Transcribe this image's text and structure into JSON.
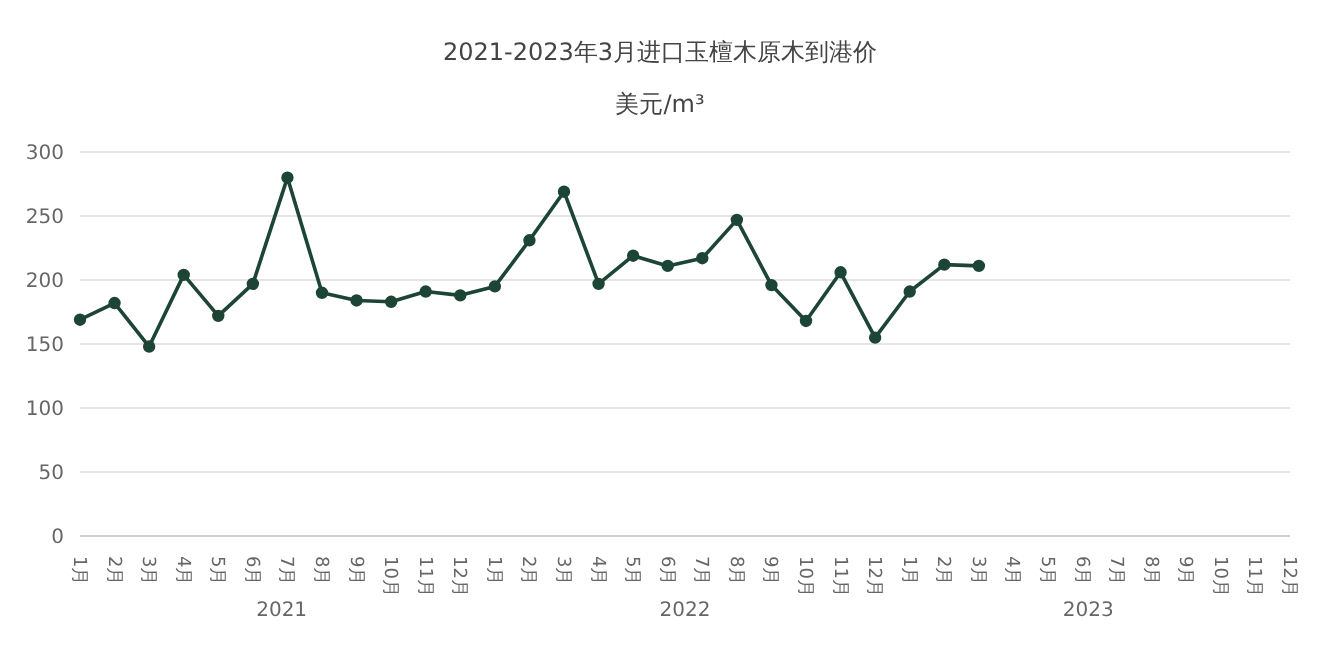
{
  "chart_data": {
    "type": "line",
    "title": "2021-2023年3月进口玉檀木原木到港价",
    "subtitle": "美元/m³",
    "categories": [
      "1月",
      "2月",
      "3月",
      "4月",
      "5月",
      "6月",
      "7月",
      "8月",
      "9月",
      "10月",
      "11月",
      "12月",
      "1月",
      "2月",
      "3月",
      "4月",
      "5月",
      "6月",
      "7月",
      "8月",
      "9月",
      "10月",
      "11月",
      "12月",
      "1月",
      "2月",
      "3月",
      "4月",
      "5月",
      "6月",
      "7月",
      "8月",
      "9月",
      "10月",
      "11月",
      "12月"
    ],
    "series": [
      {
        "color": "#1d4535",
        "values": [
          169,
          182,
          148,
          204,
          172,
          197,
          280,
          190,
          184,
          183,
          191,
          188,
          195,
          231,
          269,
          197,
          219,
          211,
          217,
          247,
          196,
          168,
          206,
          155,
          191,
          212,
          211,
          null,
          null,
          null,
          null,
          null,
          null,
          null,
          null,
          null
        ]
      }
    ],
    "annotations": [
      "2021",
      "2022",
      "2023"
    ],
    "ylim": [
      0,
      300
    ],
    "yticks": [
      0,
      50,
      100,
      150,
      200,
      250,
      300
    ],
    "grid": "y",
    "legend": false,
    "marker": "circle",
    "line_style": "solid"
  }
}
